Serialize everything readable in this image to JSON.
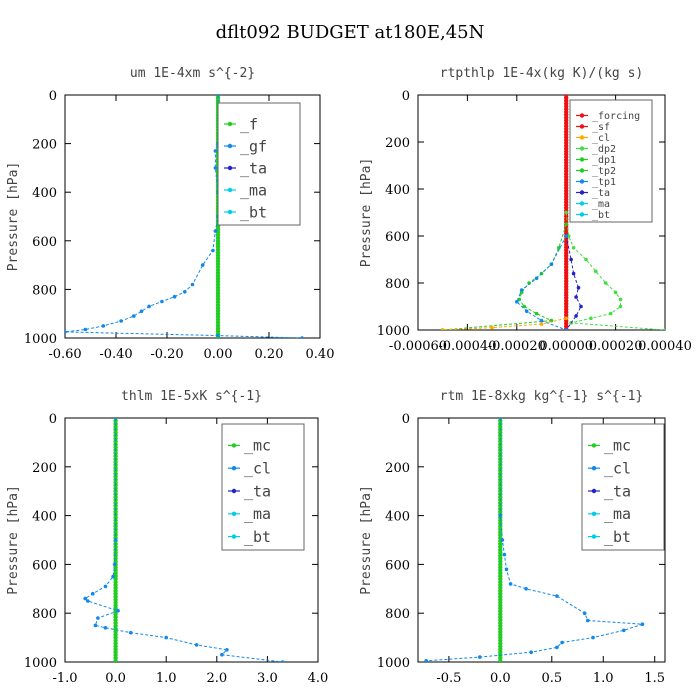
{
  "title": "dflt092  BUDGET at180E,45N",
  "colors": {
    "green": "#22cc22",
    "blue": "#1188ee",
    "darkblue": "#2222cc",
    "cyan": "#00ccee",
    "red": "#ee1111",
    "orange": "#ffaa00",
    "lime": "#44dd44"
  },
  "chart_data": [
    {
      "type": "line",
      "title": "um  1E-4xm s^{-2}",
      "ylabel": "Pressure [hPa]",
      "xlim": [
        -0.6,
        0.4
      ],
      "ylim": [
        1000,
        0
      ],
      "xticks": [
        "-0.60",
        "-0.40",
        "-0.20",
        "0.00",
        "0.20",
        "0.40"
      ],
      "yticks": [
        "0",
        "200",
        "400",
        "600",
        "800",
        "1000"
      ],
      "legend": [
        "_f",
        "_gf",
        "_ta",
        "_ma",
        "_bt"
      ],
      "series": [
        {
          "name": "_f",
          "color": "green",
          "x": [
            0,
            0
          ],
          "y": [
            0,
            1000
          ]
        },
        {
          "name": "_bt",
          "color": "blue",
          "x": [
            0,
            0,
            -0.01,
            -0.01,
            0,
            0,
            -0.01,
            -0.02,
            -0.06,
            -0.1,
            -0.13,
            -0.17,
            -0.22,
            -0.27,
            -0.3,
            -0.33,
            -0.38,
            -0.45,
            -0.52,
            -0.6,
            0,
            0.33
          ],
          "y": [
            0,
            200,
            230,
            300,
            400,
            500,
            560,
            640,
            700,
            780,
            810,
            830,
            850,
            870,
            890,
            910,
            930,
            950,
            965,
            975,
            990,
            1000
          ]
        }
      ]
    },
    {
      "type": "line",
      "title": "rtpthlp  1E-4x(kg K)/(kg s)",
      "ylabel": "Pressure [hPa]",
      "xlim": [
        -0.0006,
        0.0004
      ],
      "ylim": [
        1000,
        0
      ],
      "xticks": [
        "-0.00060",
        "-0.00040",
        "-0.00020",
        "0.00000",
        "0.00020",
        "0.00040"
      ],
      "yticks": [
        "0",
        "200",
        "400",
        "600",
        "800",
        "1000"
      ],
      "legend": [
        "_forcing",
        "_sf",
        "_cl",
        "_dp2",
        "_dp1",
        "_tp2",
        "_tp1",
        "_ta",
        "_ma",
        "_bt"
      ],
      "series": [
        {
          "name": "_forcing",
          "color": "red",
          "x": [
            0,
            0
          ],
          "y": [
            0,
            1000
          ]
        },
        {
          "name": "_dp1",
          "color": "lime",
          "x": [
            0,
            1e-05,
            3e-05,
            8e-05,
            0.00012,
            0.00016,
            0.0002,
            0.00022,
            0.00022,
            0.00018,
            0.0001,
            2e-05,
            0.0004
          ],
          "y": [
            500,
            600,
            650,
            700,
            750,
            800,
            840,
            870,
            900,
            930,
            950,
            970,
            1000
          ]
        },
        {
          "name": "_dp2",
          "color": "green",
          "x": [
            0,
            -3e-05,
            -6e-05,
            -0.0001,
            -0.00015,
            -0.00018,
            -0.00019,
            -0.00017,
            -0.00012,
            -6e-05,
            -0.0005
          ],
          "y": [
            550,
            650,
            720,
            760,
            800,
            840,
            870,
            900,
            930,
            960,
            1000
          ]
        },
        {
          "name": "_tp1",
          "color": "darkblue",
          "x": [
            0,
            2e-05,
            3e-05,
            5e-05,
            4e-05,
            6e-05,
            4e-05,
            0
          ],
          "y": [
            600,
            700,
            760,
            820,
            860,
            900,
            940,
            1000
          ]
        },
        {
          "name": "_ta",
          "color": "blue",
          "x": [
            0,
            -6e-05,
            -0.00012,
            -0.00018,
            -0.0002,
            -0.00016,
            -0.0001,
            0
          ],
          "y": [
            600,
            720,
            780,
            830,
            880,
            920,
            960,
            1000
          ]
        },
        {
          "name": "_cl",
          "color": "orange",
          "x": [
            0,
            -0.0001,
            -0.0003,
            -0.0005
          ],
          "y": [
            950,
            975,
            990,
            1000
          ]
        }
      ]
    },
    {
      "type": "line",
      "title": "thlm  1E-5xK s^{-1}",
      "ylabel": "Pressure [hPa]",
      "xlim": [
        -1.0,
        4.0
      ],
      "ylim": [
        1000,
        0
      ],
      "xticks": [
        "-1.0",
        "0.0",
        "1.0",
        "2.0",
        "3.0",
        "4.0"
      ],
      "yticks": [
        "0",
        "200",
        "400",
        "600",
        "800",
        "1000"
      ],
      "legend": [
        "_mc",
        "_cl",
        "_ta",
        "_ma",
        "_bt"
      ],
      "series": [
        {
          "name": "_mc",
          "color": "green",
          "x": [
            0,
            0
          ],
          "y": [
            0,
            1000
          ]
        },
        {
          "name": "_bt",
          "color": "blue",
          "x": [
            0,
            0,
            -0.02,
            -0.05,
            -0.2,
            -0.45,
            -0.6,
            -0.55,
            0.05,
            -0.35,
            -0.4,
            -0.2,
            0.3,
            1.0,
            1.6,
            2.2,
            2.1,
            3.3
          ],
          "y": [
            0,
            500,
            600,
            650,
            690,
            720,
            740,
            750,
            790,
            820,
            850,
            860,
            880,
            900,
            930,
            950,
            970,
            1000
          ]
        }
      ]
    },
    {
      "type": "line",
      "title": "rtm  1E-8xkg kg^{-1} s^{-1}",
      "ylabel": "Pressure [hPa]",
      "xlim": [
        -0.8,
        1.6
      ],
      "ylim": [
        1000,
        0
      ],
      "xticks": [
        "-0.5",
        "0.0",
        "0.5",
        "1.0",
        "1.5"
      ],
      "yticks": [
        "0",
        "200",
        "400",
        "600",
        "800",
        "1000"
      ],
      "legend": [
        "_mc",
        "_cl",
        "_ta",
        "_ma",
        "_bt"
      ],
      "series": [
        {
          "name": "_mc",
          "color": "green",
          "x": [
            0,
            0
          ],
          "y": [
            0,
            1000
          ]
        },
        {
          "name": "_bt",
          "color": "blue",
          "x": [
            0,
            0,
            0.02,
            0.04,
            0.06,
            0.1,
            0.25,
            0.55,
            0.82,
            0.85,
            1.38,
            1.2,
            0.9,
            0.6,
            0.55,
            0.3,
            -0.2,
            -0.72
          ],
          "y": [
            0,
            400,
            500,
            560,
            620,
            680,
            700,
            730,
            800,
            830,
            845,
            870,
            900,
            920,
            940,
            960,
            980,
            995
          ]
        }
      ]
    }
  ]
}
